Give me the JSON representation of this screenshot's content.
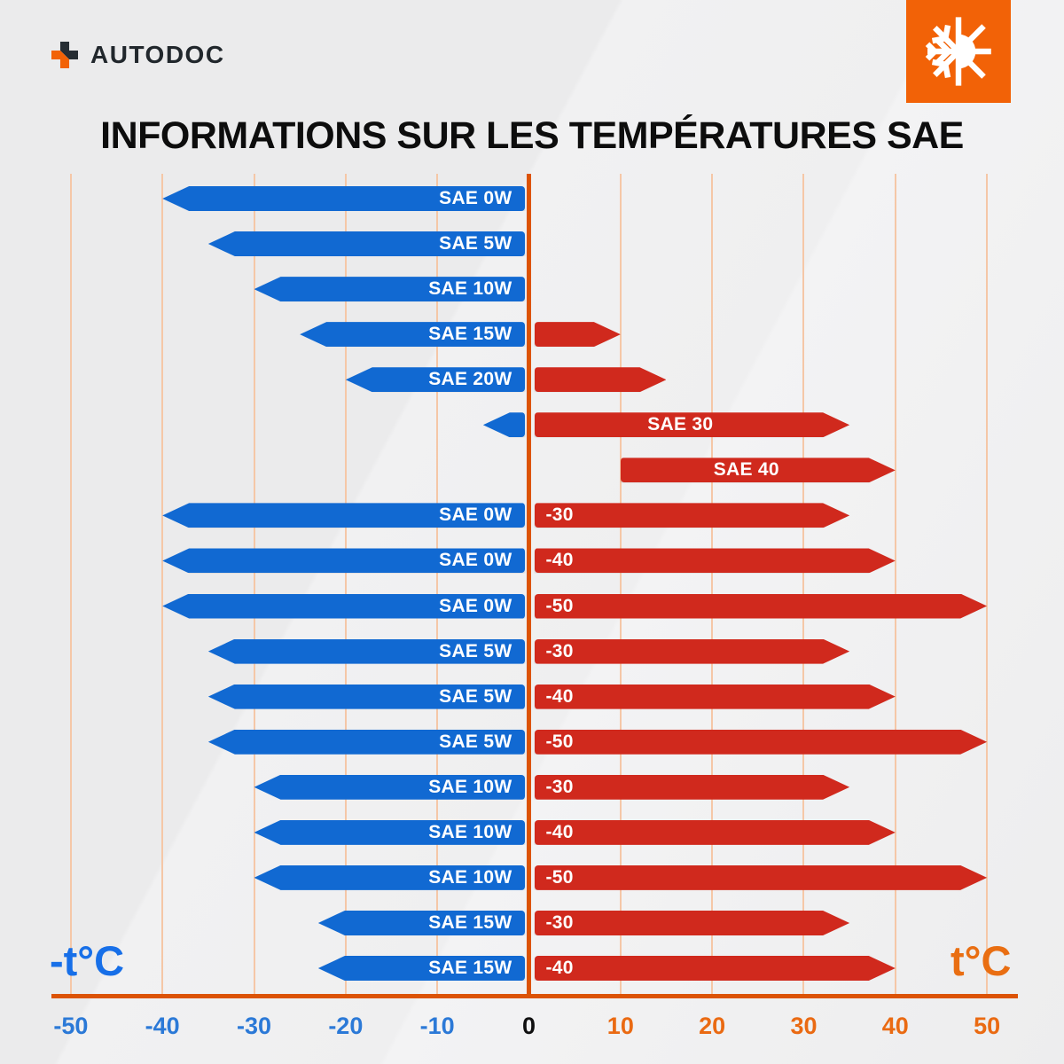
{
  "brand": {
    "logo_text": "AUTODOC"
  },
  "header_icon": "snowflake-sun-icon",
  "title": "INFORMATIONS SUR LES TEMPÉRATURES SAE",
  "axis": {
    "left_label": "-t°C",
    "right_label": "t°C",
    "tick_color_negative": "#2b79d7",
    "tick_color_zero": "#101010",
    "tick_color_positive": "#ea6a12"
  },
  "colors": {
    "cold_blue": "#1169d2",
    "warm_red": "#d0291d",
    "grid_line": "#f5c7a7",
    "zero_line": "#dc5305",
    "brand_orange": "#f26207",
    "background": "#ededee"
  },
  "chart_data": {
    "type": "bar",
    "orientation": "horizontal",
    "title": "INFORMATIONS SUR LES TEMPÉRATURES SAE",
    "xlabel": "t°C",
    "xlim": [
      -55,
      55
    ],
    "x_ticks": [
      -50,
      -40,
      -30,
      -20,
      -10,
      0,
      10,
      20,
      30,
      40,
      50
    ],
    "grid": true,
    "legend": false,
    "rows": [
      {
        "sae": "SAE 0W",
        "cold_from": -40,
        "cold_to": 0,
        "warm_from": null,
        "warm_to": null,
        "warm_label": null,
        "warm_label_pos": null
      },
      {
        "sae": "SAE 5W",
        "cold_from": -35,
        "cold_to": 0,
        "warm_from": null,
        "warm_to": null,
        "warm_label": null,
        "warm_label_pos": null
      },
      {
        "sae": "SAE 10W",
        "cold_from": -30,
        "cold_to": 0,
        "warm_from": null,
        "warm_to": null,
        "warm_label": null,
        "warm_label_pos": null
      },
      {
        "sae": "SAE 15W",
        "cold_from": -25,
        "cold_to": 0,
        "warm_from": 0,
        "warm_to": 10,
        "warm_label": null,
        "warm_label_pos": null
      },
      {
        "sae": "SAE 20W",
        "cold_from": -20,
        "cold_to": 0,
        "warm_from": 0,
        "warm_to": 15,
        "warm_label": null,
        "warm_label_pos": null
      },
      {
        "sae": null,
        "cold_from": -5,
        "cold_to": 0,
        "warm_from": 0,
        "warm_to": 35,
        "warm_label": "SAE 30",
        "warm_label_pos": "center"
      },
      {
        "sae": null,
        "cold_from": null,
        "cold_to": null,
        "warm_from": 10,
        "warm_to": 40,
        "warm_label": "SAE 40",
        "warm_label_pos": "center"
      },
      {
        "sae": "SAE 0W",
        "cold_from": -40,
        "cold_to": 0,
        "warm_from": 0,
        "warm_to": 35,
        "warm_label": "-30",
        "warm_label_pos": "left"
      },
      {
        "sae": "SAE 0W",
        "cold_from": -40,
        "cold_to": 0,
        "warm_from": 0,
        "warm_to": 40,
        "warm_label": "-40",
        "warm_label_pos": "left"
      },
      {
        "sae": "SAE 0W",
        "cold_from": -40,
        "cold_to": 0,
        "warm_from": 0,
        "warm_to": 50,
        "warm_label": "-50",
        "warm_label_pos": "left"
      },
      {
        "sae": "SAE 5W",
        "cold_from": -35,
        "cold_to": 0,
        "warm_from": 0,
        "warm_to": 35,
        "warm_label": "-30",
        "warm_label_pos": "left"
      },
      {
        "sae": "SAE 5W",
        "cold_from": -35,
        "cold_to": 0,
        "warm_from": 0,
        "warm_to": 40,
        "warm_label": "-40",
        "warm_label_pos": "left"
      },
      {
        "sae": "SAE 5W",
        "cold_from": -35,
        "cold_to": 0,
        "warm_from": 0,
        "warm_to": 50,
        "warm_label": "-50",
        "warm_label_pos": "left"
      },
      {
        "sae": "SAE 10W",
        "cold_from": -30,
        "cold_to": 0,
        "warm_from": 0,
        "warm_to": 35,
        "warm_label": "-30",
        "warm_label_pos": "left"
      },
      {
        "sae": "SAE 10W",
        "cold_from": -30,
        "cold_to": 0,
        "warm_from": 0,
        "warm_to": 40,
        "warm_label": "-40",
        "warm_label_pos": "left"
      },
      {
        "sae": "SAE 10W",
        "cold_from": -30,
        "cold_to": 0,
        "warm_from": 0,
        "warm_to": 50,
        "warm_label": "-50",
        "warm_label_pos": "left"
      },
      {
        "sae": "SAE 15W",
        "cold_from": -23,
        "cold_to": 0,
        "warm_from": 0,
        "warm_to": 35,
        "warm_label": "-30",
        "warm_label_pos": "left"
      },
      {
        "sae": "SAE 15W",
        "cold_from": -23,
        "cold_to": 0,
        "warm_from": 0,
        "warm_to": 40,
        "warm_label": "-40",
        "warm_label_pos": "left"
      }
    ]
  }
}
